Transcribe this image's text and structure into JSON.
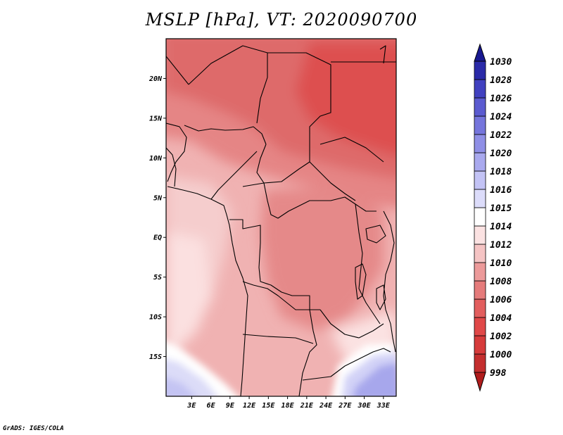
{
  "title": "MSLP [hPa], VT: 2020090700",
  "credit": "GrADS: IGES/COLA",
  "map": {
    "lon_range": [
      -1,
      35
    ],
    "lat_range": [
      -20,
      25
    ],
    "x_ticks": [
      "3E",
      "6E",
      "9E",
      "12E",
      "15E",
      "18E",
      "21E",
      "24E",
      "27E",
      "30E",
      "33E"
    ],
    "x_tick_values": [
      3,
      6,
      9,
      12,
      15,
      18,
      21,
      24,
      27,
      30,
      33
    ],
    "y_ticks": [
      "20N",
      "15N",
      "10N",
      "5N",
      "EQ",
      "5S",
      "10S",
      "15S"
    ],
    "y_tick_values": [
      20,
      15,
      10,
      5,
      0,
      -5,
      -10,
      -15
    ]
  },
  "colorbar": {
    "levels": [
      "998",
      "1000",
      "1002",
      "1004",
      "1006",
      "1008",
      "1010",
      "1012",
      "1014",
      "1015",
      "1016",
      "1018",
      "1020",
      "1022",
      "1024",
      "1026",
      "1028",
      "1030"
    ],
    "colors": [
      "#b01c1c",
      "#c42e2e",
      "#d63b3b",
      "#e04848",
      "#e25e5e",
      "#e57b7b",
      "#ec9a9a",
      "#f5c4c4",
      "#fbe2e2",
      "#ffffff",
      "#dcdcfa",
      "#c3c3f5",
      "#a9a9ee",
      "#8f8fe6",
      "#7575dc",
      "#5b5bd0",
      "#4141c0",
      "#2a2aa8",
      "#181890"
    ]
  }
}
